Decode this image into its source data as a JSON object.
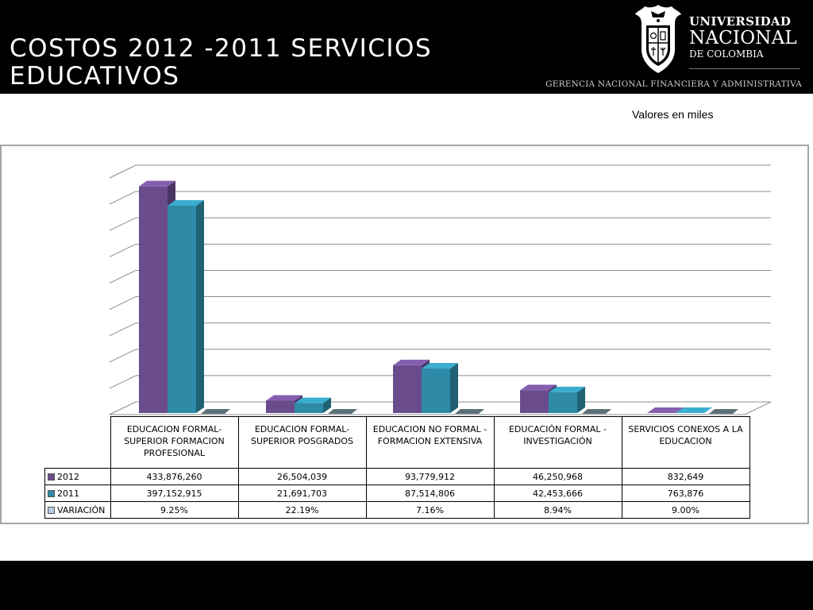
{
  "slide": {
    "title": "COSTOS 2012 -2011  SERVICIOS EDUCATIVOS",
    "units_note": "Valores en miles"
  },
  "branding": {
    "line1": "UNIVERSIDAD",
    "line2": "NACIONAL",
    "line3": "DE COLOMBIA",
    "gerencia": "GERENCIA NACIONAL FINANCIERA Y ADMINISTRATIVA"
  },
  "colors": {
    "series_2012": "#6a4c8c",
    "series_2011": "#2e8aa6",
    "variacion": "#b8cce4",
    "header_bg": "#000000"
  },
  "chart_data": {
    "type": "bar",
    "title": "",
    "xlabel": "",
    "ylabel": "",
    "grid": true,
    "legend": "data-table",
    "ylim": [
      0,
      450000000
    ],
    "categories": [
      "EDUCACION FORMAL-SUPERIOR FORMACION PROFESIONAL",
      "EDUCACION FORMAL-SUPERIOR POSGRADOS",
      "EDUCACION NO FORMAL -FORMACION EXTENSIVA",
      "EDUCACIÓN FORMAL - INVESTIGACIÓN",
      "SERVICIOS CONEXOS A LA EDUCACION"
    ],
    "series": [
      {
        "name": "2012",
        "values": [
          433876260,
          26504039,
          93779912,
          46250968,
          832649
        ],
        "labels": [
          "433,876,260",
          "26,504,039",
          "93,779,912",
          "46,250,968",
          "832,649"
        ]
      },
      {
        "name": "2011",
        "values": [
          397152915,
          21691703,
          87514806,
          42453666,
          763876
        ],
        "labels": [
          "397,152,915",
          "21,691,703",
          "87,514,806",
          "42,453,666",
          "763,876"
        ]
      },
      {
        "name": "VARIACIÓN",
        "values": [
          9.25,
          22.19,
          7.16,
          8.94,
          9.0
        ],
        "labels": [
          "9.25%",
          "22.19%",
          "7.16%",
          "8.94%",
          "9.00%"
        ]
      }
    ]
  }
}
